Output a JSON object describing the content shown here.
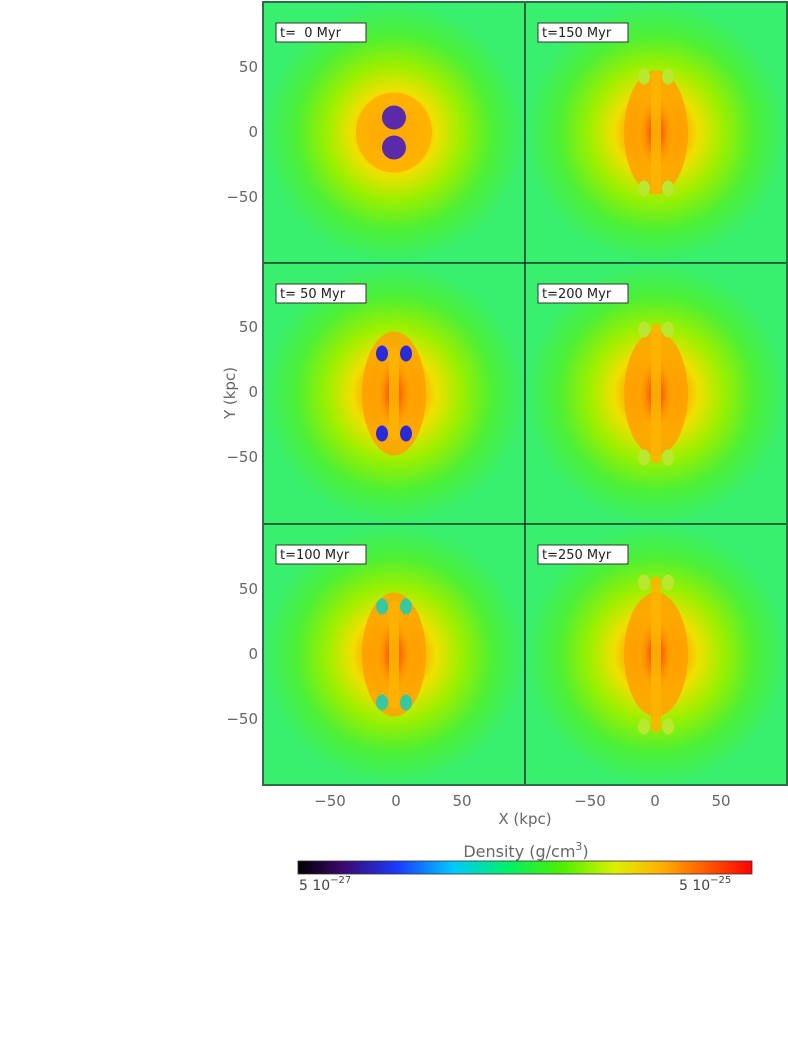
{
  "panels": [
    {
      "time": "t=  0 Myr",
      "stage": 0
    },
    {
      "time": "t=150 Myr",
      "stage": 3
    },
    {
      "time": "t= 50 Myr",
      "stage": 1
    },
    {
      "time": "t=200 Myr",
      "stage": 4
    },
    {
      "time": "t=100 Myr",
      "stage": 2
    },
    {
      "time": "t=250 Myr",
      "stage": 5
    }
  ],
  "axes": {
    "xlabel": "X (kpc)",
    "ylabel": "Y (kpc)",
    "xticks": [
      "−50",
      "0",
      "50"
    ],
    "yticks": [
      "50",
      "0",
      "−50"
    ],
    "range_kpc": [
      -95,
      95
    ]
  },
  "colorbar": {
    "title_text": "Density (g/cm",
    "title_exp": "3",
    "title_close": ")",
    "min_mantissa": "5 10",
    "min_exp": "−27",
    "max_mantissa": "5 10",
    "max_exp": "−25",
    "colors": [
      "#000000",
      "#3a0a6e",
      "#1a3cff",
      "#00c8ff",
      "#00f06a",
      "#4bf000",
      "#dff000",
      "#ffb000",
      "#ff5a00",
      "#ff0000"
    ]
  },
  "colors": {
    "background_field": "#38f06a",
    "frame": "#2f6b4a",
    "bubble": "#5b2aa8"
  }
}
